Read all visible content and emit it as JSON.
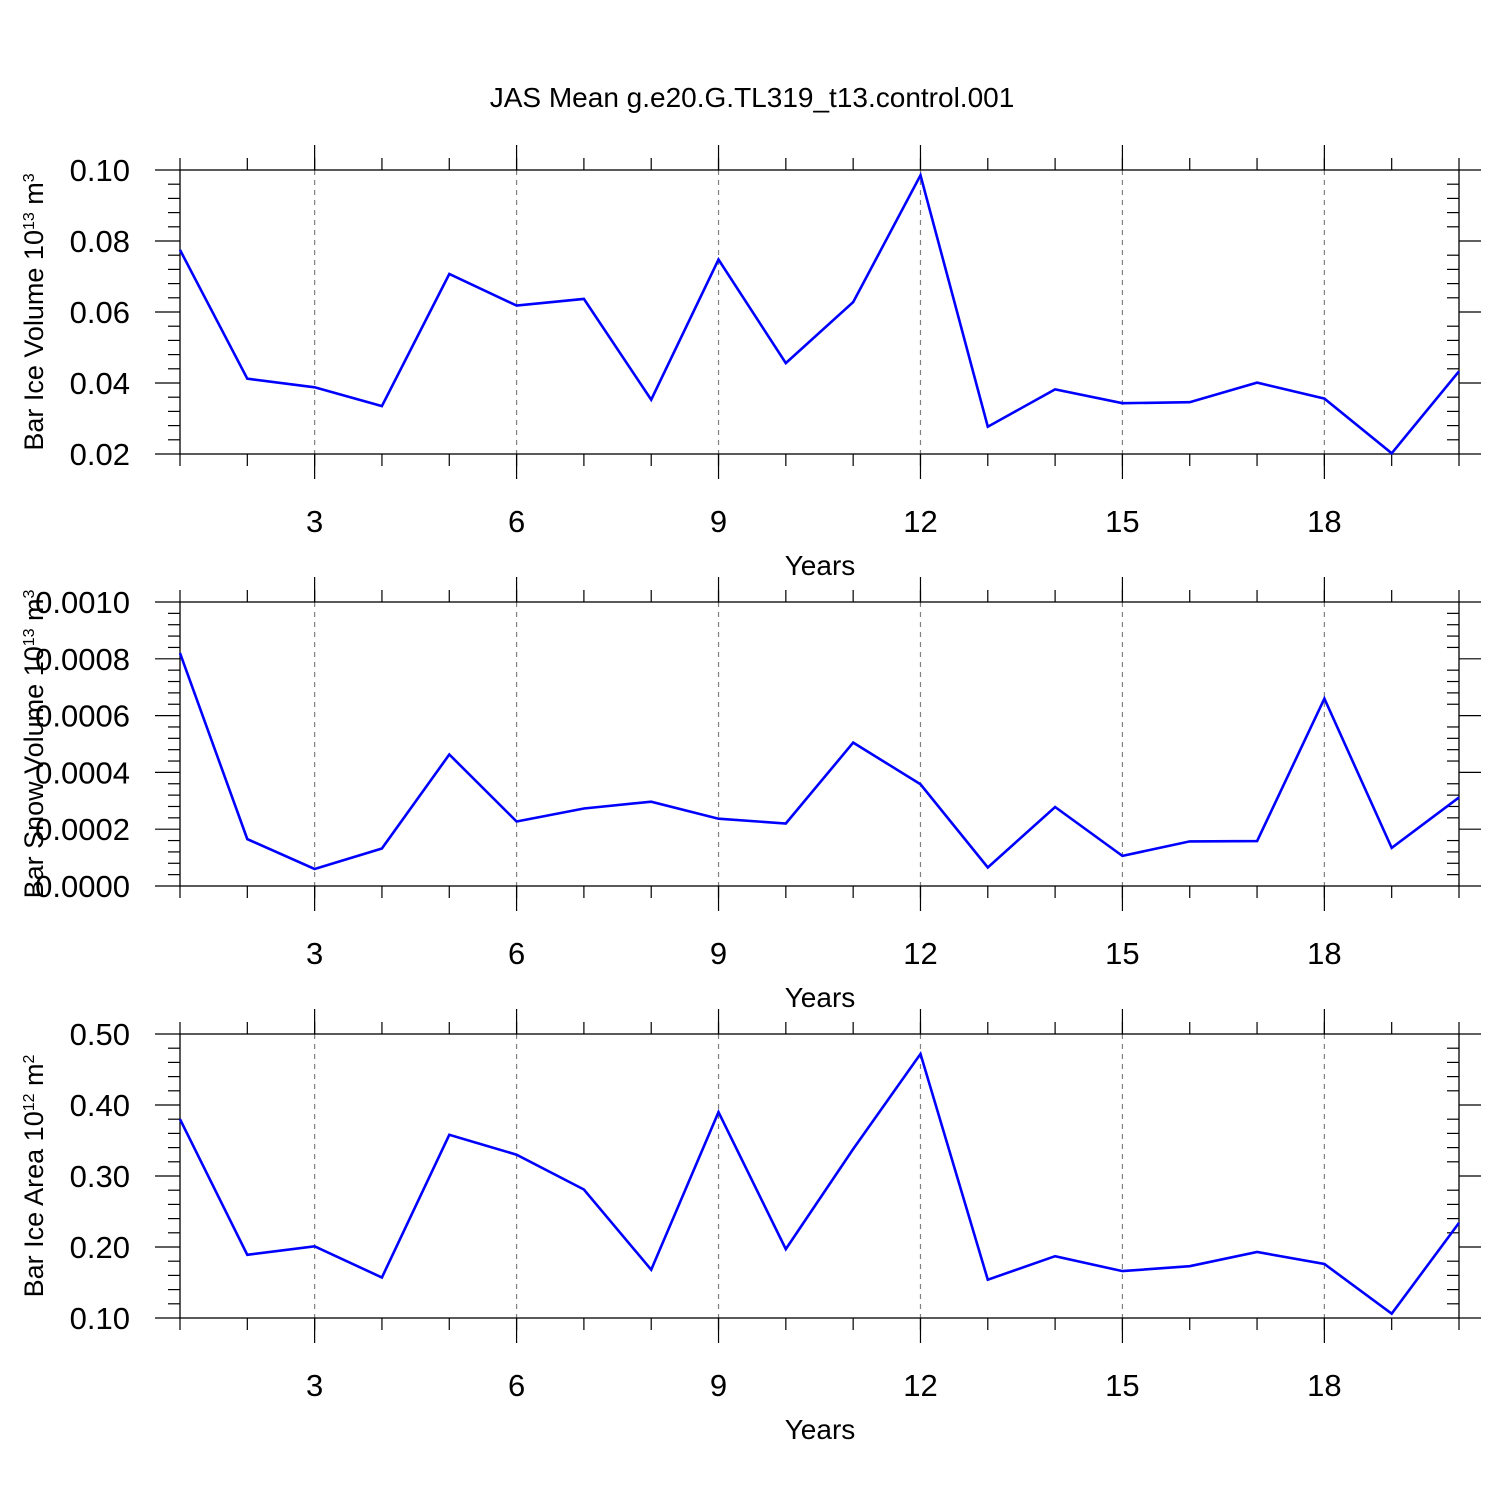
{
  "title": "JAS Mean g.e20.G.TL319_t13.control.001",
  "colors": {
    "line": "#0000ff",
    "grid": "#808080",
    "axis": "#000000"
  },
  "chart_data": [
    {
      "type": "line",
      "xlabel": "Years",
      "ylabel": {
        "pre": "Bar Ice Volume 10",
        "exp": "13",
        "mid": " m",
        "unit_exp": "3"
      },
      "x": [
        1,
        2,
        3,
        4,
        5,
        6,
        7,
        8,
        9,
        10,
        11,
        12,
        13,
        14,
        15,
        16,
        17,
        18,
        19,
        20
      ],
      "series": [
        {
          "values": [
            0.0775,
            0.0412,
            0.0388,
            0.0335,
            0.0707,
            0.0618,
            0.0637,
            0.0353,
            0.0748,
            0.0456,
            0.0628,
            0.0985,
            0.0277,
            0.0382,
            0.0343,
            0.0346,
            0.0401,
            0.0356,
            0.0202,
            0.0433
          ],
          "color": "#0000ff"
        }
      ],
      "xlim": [
        1,
        20
      ],
      "ylim": [
        0.02,
        0.1
      ],
      "x_ticks": [
        3,
        6,
        9,
        12,
        15,
        18
      ],
      "x_tick_labels": [
        "3",
        "6",
        "9",
        "12",
        "15",
        "18"
      ],
      "y_ticks": [
        0.02,
        0.04,
        0.06,
        0.08,
        0.1
      ],
      "y_tick_labels": [
        "0.02",
        "0.04",
        "0.06",
        "0.08",
        "0.10"
      ],
      "grid": "vertical dashed at major x ticks"
    },
    {
      "type": "line",
      "xlabel": "Years",
      "ylabel": {
        "pre": "Bar Snow Volume 10",
        "exp": "13",
        "mid": " m",
        "unit_exp": "3"
      },
      "x": [
        1,
        2,
        3,
        4,
        5,
        6,
        7,
        8,
        9,
        10,
        11,
        12,
        13,
        14,
        15,
        16,
        17,
        18,
        19,
        20
      ],
      "series": [
        {
          "values": [
            0.00082,
            0.000165,
            6e-05,
            0.000132,
            0.000463,
            0.000227,
            0.000273,
            0.000297,
            0.000237,
            0.00022,
            0.000505,
            0.000358,
            6.5e-05,
            0.000278,
            0.000106,
            0.000157,
            0.000158,
            0.00066,
            0.000134,
            0.000312
          ],
          "color": "#0000ff"
        }
      ],
      "xlim": [
        1,
        20
      ],
      "ylim": [
        0.0,
        0.001
      ],
      "x_ticks": [
        3,
        6,
        9,
        12,
        15,
        18
      ],
      "x_tick_labels": [
        "3",
        "6",
        "9",
        "12",
        "15",
        "18"
      ],
      "y_ticks": [
        0.0,
        0.0002,
        0.0004,
        0.0006,
        0.0008,
        0.001
      ],
      "y_tick_labels": [
        "0.0000",
        "0.0002",
        "0.0004",
        "0.0006",
        "0.0008",
        "0.0010"
      ],
      "grid": "vertical dashed at major x ticks"
    },
    {
      "type": "line",
      "xlabel": "Years",
      "ylabel": {
        "pre": "Bar Ice Area 10",
        "exp": "12",
        "mid": " m",
        "unit_exp": "2"
      },
      "x": [
        1,
        2,
        3,
        4,
        5,
        6,
        7,
        8,
        9,
        10,
        11,
        12,
        13,
        14,
        15,
        16,
        17,
        18,
        19,
        20
      ],
      "series": [
        {
          "values": [
            0.38,
            0.189,
            0.201,
            0.157,
            0.358,
            0.33,
            0.281,
            0.168,
            0.39,
            0.197,
            0.338,
            0.472,
            0.154,
            0.187,
            0.166,
            0.173,
            0.193,
            0.176,
            0.106,
            0.234
          ],
          "color": "#0000ff"
        }
      ],
      "xlim": [
        1,
        20
      ],
      "ylim": [
        0.1,
        0.5
      ],
      "x_ticks": [
        3,
        6,
        9,
        12,
        15,
        18
      ],
      "x_tick_labels": [
        "3",
        "6",
        "9",
        "12",
        "15",
        "18"
      ],
      "y_ticks": [
        0.1,
        0.2,
        0.3,
        0.4,
        0.5
      ],
      "y_tick_labels": [
        "0.10",
        "0.20",
        "0.30",
        "0.40",
        "0.50"
      ],
      "grid": "vertical dashed at major x ticks"
    }
  ]
}
